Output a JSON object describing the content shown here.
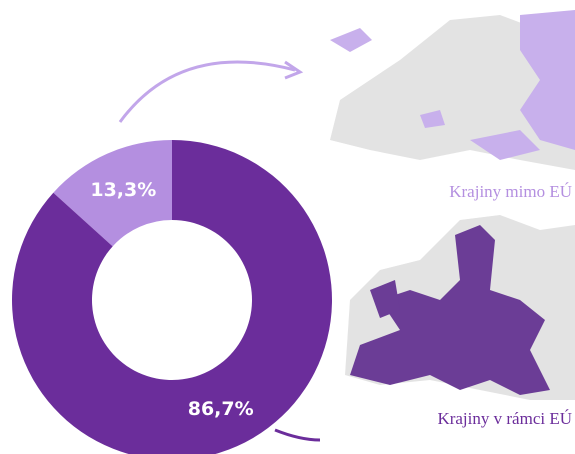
{
  "chart_data": {
    "type": "donut",
    "categories": [
      "Krajiny mimo EÚ",
      "Krajiny v rámci EÚ"
    ],
    "values": [
      13.3,
      86.7
    ],
    "value_labels": [
      "13,3%",
      "86,7%"
    ],
    "colors": [
      "#b48fe0",
      "#6b2d9b"
    ]
  }
}
